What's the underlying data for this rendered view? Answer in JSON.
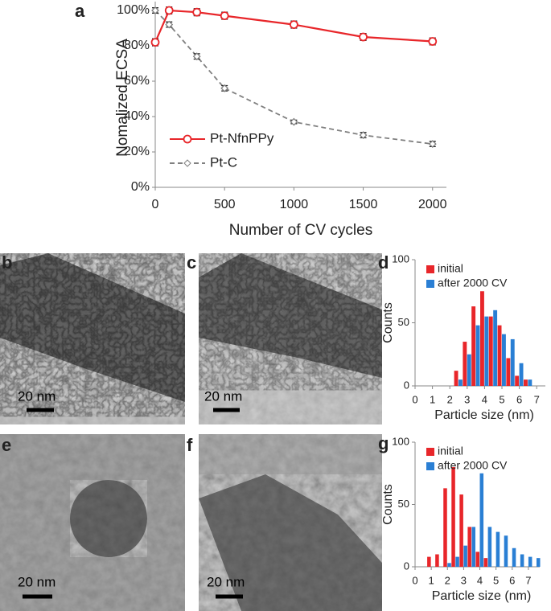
{
  "panel_labels": [
    "a",
    "b",
    "c",
    "d",
    "e",
    "f",
    "g"
  ],
  "scale_bars": [
    "20 nm",
    "20 nm",
    "20 nm",
    "20 nm"
  ],
  "chart_data": [
    {
      "type": "line",
      "xlabel": "Number of CV cycles",
      "ylabel": "Nomalized ECSA",
      "x": [
        0,
        100,
        300,
        500,
        1000,
        1500,
        2000
      ],
      "series": [
        {
          "name": "Pt-NfnPPy",
          "color": "#e8262a",
          "marker": "circle",
          "line_style": "solid",
          "values": [
            82,
            100,
            99,
            97,
            92,
            85,
            82.5
          ],
          "errors": [
            2,
            2,
            2,
            2,
            2,
            2,
            2
          ]
        },
        {
          "name": "Pt-C",
          "color": "#808080",
          "marker": "diamond",
          "line_style": "dashed",
          "values": [
            100,
            92,
            74,
            56,
            37,
            29.5,
            24.5
          ],
          "errors": [
            1.5,
            1.5,
            1.5,
            1.5,
            1,
            1.5,
            1.5
          ]
        }
      ],
      "xlim": [
        0,
        2100
      ],
      "xticks": [
        0,
        500,
        1000,
        1500,
        2000
      ],
      "ylim": [
        0,
        105
      ],
      "yticks": [
        {
          "value": 0,
          "label": "0%"
        },
        {
          "value": 20,
          "label": "20%"
        },
        {
          "value": 40,
          "label": "40%"
        },
        {
          "value": 60,
          "label": "60%"
        },
        {
          "value": 80,
          "label": "80%"
        },
        {
          "value": 100,
          "label": "100%"
        }
      ],
      "grid": false,
      "legend": "lower left"
    },
    {
      "type": "bar",
      "xlabel": "Particle size (nm)",
      "ylabel": "Counts",
      "x": [
        2.5,
        3,
        3.5,
        4,
        4.5,
        5,
        5.5,
        6,
        6.5
      ],
      "series": [
        {
          "name": "initial",
          "color": "#e8262a",
          "values": [
            12,
            35,
            63,
            75,
            55,
            48,
            22,
            8,
            5
          ]
        },
        {
          "name": "after 2000 CV",
          "color": "#2a7fd4",
          "values": [
            5,
            25,
            48,
            55,
            60,
            41,
            37,
            18,
            5
          ]
        }
      ],
      "xlim": [
        0,
        7.5
      ],
      "xticks": [
        0,
        1,
        2,
        3,
        4,
        5,
        6,
        7
      ],
      "ylim": [
        0,
        100
      ],
      "yticks": [
        0,
        50,
        100
      ],
      "grid": false,
      "legend": "upper left"
    },
    {
      "type": "bar",
      "xlabel": "Particle size (nm)",
      "ylabel": "Counts",
      "x": [
        1,
        1.5,
        2,
        2.5,
        3,
        3.5,
        4,
        4.5,
        5,
        5.5,
        6,
        6.5,
        7,
        7.5
      ],
      "series": [
        {
          "name": "initial",
          "color": "#e8262a",
          "values": [
            8,
            10,
            63,
            80,
            58,
            32,
            12,
            7,
            null,
            null,
            null,
            null,
            null,
            null
          ]
        },
        {
          "name": "after 2000 CV",
          "color": "#2a7fd4",
          "values": [
            null,
            null,
            3,
            8,
            17,
            32,
            75,
            32,
            28,
            25,
            15,
            10,
            8,
            7
          ]
        }
      ],
      "xlim": [
        0,
        7.7
      ],
      "xticks": [
        0,
        1,
        2,
        3,
        4,
        5,
        6,
        7
      ],
      "ylim": [
        0,
        100
      ],
      "yticks": [
        0,
        50,
        100
      ],
      "grid": false,
      "legend": "upper left"
    }
  ]
}
